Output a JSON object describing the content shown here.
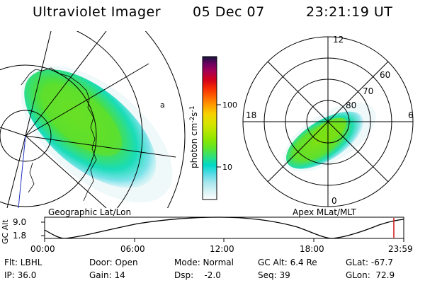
{
  "header": {
    "title": "Ultraviolet Imager",
    "date": "05 Dec 07",
    "time": "23:21:19 UT"
  },
  "left_panel": {
    "caption": "Geographic Lat/Lon"
  },
  "right_panel": {
    "caption": "Apex MLat/MLT",
    "mlt_labels": [
      "12",
      "18",
      "6",
      "0"
    ],
    "mlat_labels": [
      "60",
      "70",
      "80"
    ]
  },
  "colorbar": {
    "unit_label": "photon cm",
    "unit_exp1": "-2",
    "unit_s": "s",
    "unit_exp2": "-1",
    "tick_labels": [
      "100",
      "10"
    ],
    "colors": [
      "#ffffff",
      "#d6f2f5",
      "#a6e6ec",
      "#55dbe6",
      "#00d9c8",
      "#2fe07a",
      "#5ee52a",
      "#8be600",
      "#b7e600",
      "#dbe300",
      "#f7d000",
      "#ff9c00",
      "#ff6200",
      "#f52a00",
      "#d1001c",
      "#a30055",
      "#6b0060",
      "#14143c"
    ]
  },
  "altitude_plot": {
    "ylabel": "GC Alt",
    "y_ticks": [
      "9.0",
      "1.8"
    ],
    "x_ticks": [
      "00:00",
      "06:00",
      "12:00",
      "18:00",
      "23:59"
    ],
    "cursor_color": "#d01010"
  },
  "footer": {
    "filter": "Flt: LBHL",
    "ip": "IP: 36.0",
    "door": "Door: Open",
    "gain": "Gain: 14",
    "mode": "Mode: Normal",
    "dsp": "Dsp:    -2.0",
    "gc_alt": "GC Alt: 6.4 Re",
    "seq": "Seq: 39",
    "glat": "GLat: -67.7",
    "glon": "GLon:  72.9"
  }
}
